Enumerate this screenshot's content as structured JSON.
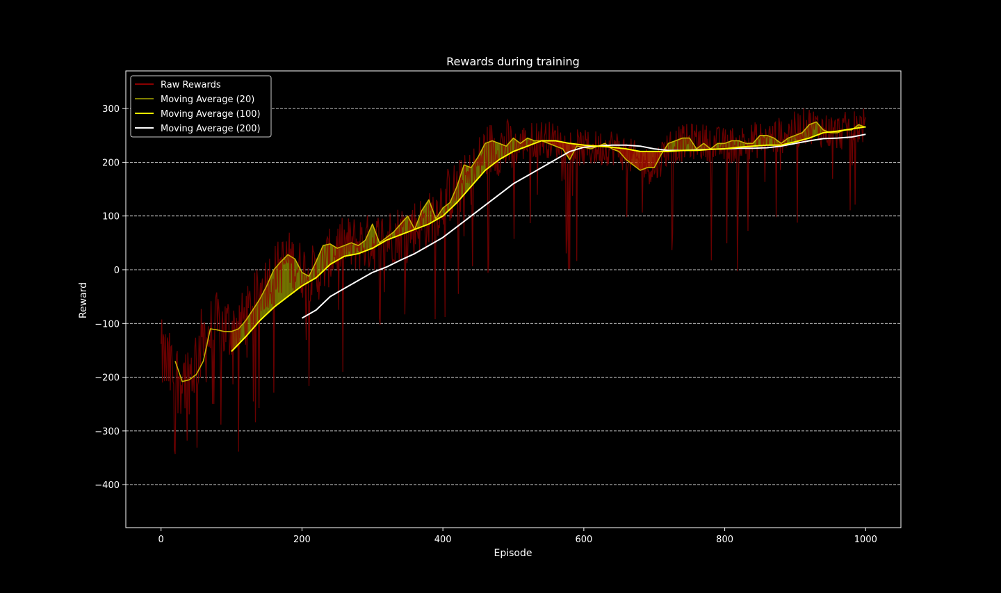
{
  "chart_data": {
    "type": "line",
    "title": "Rewards during training",
    "xlabel": "Episode",
    "ylabel": "Reward",
    "xlim": [
      -50,
      1050
    ],
    "ylim": [
      -480,
      370
    ],
    "xticks": [
      0,
      200,
      400,
      600,
      800,
      1000
    ],
    "yticks": [
      -400,
      -300,
      -200,
      -100,
      0,
      100,
      200,
      300
    ],
    "xtick_labels": [
      "0",
      "200",
      "400",
      "600",
      "800",
      "1000"
    ],
    "ytick_labels": [
      "−400",
      "−300",
      "−200",
      "−100",
      "0",
      "100",
      "200",
      "300"
    ],
    "grid": "y dashed",
    "legend_position": "upper-left",
    "series": [
      {
        "name": "Raw Rewards",
        "color": "#8b0000",
        "noise": true,
        "x_range": [
          0,
          1000
        ],
        "trend_x": [
          0,
          20,
          40,
          60,
          80,
          100,
          120,
          150,
          180,
          200,
          220,
          250,
          280,
          300,
          340,
          380,
          400,
          440,
          460,
          480,
          500,
          520,
          540,
          560,
          580,
          600,
          620,
          640,
          660,
          680,
          700,
          720,
          760,
          800,
          840,
          880,
          920,
          940,
          960,
          1000
        ],
        "trend_y": [
          -160,
          -200,
          -200,
          -130,
          -110,
          -110,
          -90,
          -20,
          20,
          0,
          -10,
          40,
          50,
          50,
          70,
          90,
          130,
          170,
          220,
          230,
          225,
          240,
          245,
          240,
          230,
          225,
          225,
          230,
          215,
          200,
          190,
          230,
          240,
          230,
          240,
          250,
          270,
          260,
          255,
          270
        ]
      },
      {
        "name": "Moving Average (20)",
        "color": "#808000",
        "x": [
          20,
          30,
          40,
          50,
          60,
          70,
          80,
          90,
          100,
          110,
          120,
          130,
          140,
          150,
          160,
          170,
          180,
          190,
          200,
          210,
          220,
          230,
          240,
          250,
          260,
          270,
          280,
          290,
          300,
          310,
          320,
          330,
          340,
          350,
          360,
          370,
          380,
          390,
          400,
          410,
          420,
          430,
          440,
          450,
          460,
          470,
          480,
          490,
          500,
          510,
          520,
          530,
          540,
          550,
          560,
          570,
          580,
          590,
          600,
          610,
          620,
          630,
          640,
          650,
          660,
          670,
          680,
          690,
          700,
          710,
          720,
          730,
          740,
          750,
          760,
          770,
          780,
          790,
          800,
          810,
          820,
          830,
          840,
          850,
          860,
          870,
          880,
          890,
          900,
          910,
          920,
          930,
          940,
          950,
          960,
          970,
          980,
          990,
          1000
        ],
        "values": [
          -170,
          -208,
          -205,
          -195,
          -170,
          -110,
          -112,
          -115,
          -115,
          -110,
          -95,
          -75,
          -55,
          -30,
          0,
          15,
          28,
          20,
          -5,
          -12,
          15,
          45,
          48,
          40,
          45,
          50,
          45,
          55,
          85,
          50,
          60,
          70,
          85,
          100,
          75,
          110,
          130,
          95,
          115,
          125,
          155,
          195,
          190,
          210,
          235,
          240,
          235,
          230,
          245,
          235,
          245,
          240,
          240,
          235,
          230,
          225,
          205,
          230,
          228,
          225,
          230,
          235,
          225,
          220,
          205,
          195,
          185,
          190,
          190,
          215,
          235,
          240,
          245,
          245,
          225,
          235,
          225,
          235,
          235,
          240,
          240,
          235,
          235,
          250,
          250,
          245,
          235,
          245,
          250,
          255,
          270,
          275,
          260,
          255,
          255,
          260,
          260,
          270,
          265
        ]
      },
      {
        "name": "Moving Average (100)",
        "color": "#ffff00",
        "x": [
          100,
          120,
          140,
          160,
          180,
          200,
          220,
          240,
          260,
          280,
          300,
          320,
          340,
          360,
          380,
          400,
          420,
          440,
          460,
          480,
          500,
          520,
          540,
          560,
          580,
          600,
          620,
          640,
          660,
          680,
          700,
          720,
          740,
          760,
          780,
          800,
          820,
          840,
          860,
          880,
          900,
          920,
          940,
          960,
          980,
          1000
        ],
        "values": [
          -152,
          -125,
          -95,
          -70,
          -50,
          -30,
          -15,
          10,
          25,
          30,
          40,
          55,
          65,
          75,
          85,
          100,
          125,
          155,
          185,
          205,
          220,
          230,
          240,
          240,
          235,
          232,
          230,
          228,
          225,
          220,
          220,
          220,
          222,
          222,
          224,
          225,
          228,
          230,
          232,
          232,
          238,
          245,
          255,
          258,
          262,
          266
        ]
      },
      {
        "name": "Moving Average (200)",
        "color": "#ffffff",
        "x": [
          200,
          220,
          240,
          260,
          280,
          300,
          320,
          340,
          360,
          380,
          400,
          420,
          440,
          460,
          480,
          500,
          520,
          540,
          560,
          580,
          600,
          620,
          640,
          660,
          680,
          700,
          720,
          740,
          760,
          780,
          800,
          820,
          840,
          860,
          880,
          900,
          920,
          940,
          960,
          980,
          1000
        ],
        "values": [
          -90,
          -75,
          -50,
          -35,
          -20,
          -5,
          5,
          18,
          30,
          45,
          60,
          80,
          100,
          120,
          140,
          160,
          175,
          190,
          205,
          220,
          228,
          230,
          232,
          232,
          230,
          225,
          222,
          222,
          223,
          224,
          225,
          226,
          226,
          227,
          230,
          235,
          240,
          244,
          245,
          247,
          252
        ]
      }
    ],
    "legend": [
      "Raw Rewards",
      "Moving Average (20)",
      "Moving Average (100)",
      "Moving Average (200)"
    ]
  }
}
